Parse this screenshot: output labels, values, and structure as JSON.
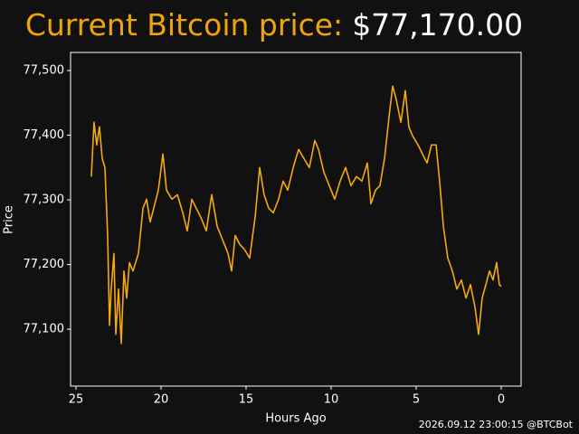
{
  "chart_data": {
    "type": "line",
    "title_label": "Current Bitcoin price:",
    "title_value": "$77,170.00",
    "x_label": "Hours Ago",
    "y_label": "Price",
    "footer": "2026.09.12 23:00:15 @BTCBot",
    "xlim": [
      25.32,
      -1.17
    ],
    "xticks": [
      25,
      20,
      15,
      10,
      5,
      0
    ],
    "ylim": [
      77012,
      77528
    ],
    "yticks": [
      {
        "value": 77100,
        "label": "77,100"
      },
      {
        "value": 77200,
        "label": "77,200"
      },
      {
        "value": 77300,
        "label": "77,300"
      },
      {
        "value": 77400,
        "label": "77,400"
      },
      {
        "value": 77500,
        "label": "77,500"
      }
    ],
    "x": [
      24.1,
      23.94,
      23.78,
      23.62,
      23.46,
      23.3,
      23.14,
      23.03,
      22.93,
      22.77,
      22.66,
      22.5,
      22.34,
      22.18,
      22.02,
      21.86,
      21.65,
      21.33,
      21.06,
      20.85,
      20.64,
      20.43,
      20.16,
      19.89,
      19.68,
      19.36,
      19.04,
      18.72,
      18.46,
      18.19,
      17.93,
      17.66,
      17.34,
      17.02,
      16.7,
      16.38,
      16.06,
      15.85,
      15.64,
      15.37,
      15.11,
      14.79,
      14.47,
      14.2,
      13.94,
      13.67,
      13.4,
      13.09,
      12.82,
      12.55,
      12.23,
      11.91,
      11.6,
      11.28,
      10.96,
      10.74,
      10.43,
      10.11,
      9.79,
      9.47,
      9.15,
      8.83,
      8.51,
      8.19,
      7.87,
      7.66,
      7.39,
      7.13,
      6.86,
      6.6,
      6.38,
      6.17,
      5.9,
      5.64,
      5.43,
      5.21,
      4.89,
      4.63,
      4.36,
      4.1,
      3.83,
      3.62,
      3.4,
      3.14,
      2.87,
      2.61,
      2.34,
      2.07,
      1.81,
      1.54,
      1.33,
      1.12,
      0.9,
      0.69,
      0.48,
      0.27,
      0.11,
      0
    ],
    "series": [
      {
        "color": "#f5a80f",
        "values": [
          77336,
          77420,
          77385,
          77413,
          77364,
          77350,
          77245,
          77106,
          77162,
          77217,
          77092,
          77162,
          77078,
          77190,
          77148,
          77203,
          77190,
          77217,
          77287,
          77301,
          77266,
          77287,
          77315,
          77371,
          77315,
          77301,
          77308,
          77280,
          77252,
          77301,
          77287,
          77273,
          77252,
          77308,
          77259,
          77238,
          77217,
          77190,
          77245,
          77231,
          77224,
          77210,
          77273,
          77350,
          77308,
          77287,
          77280,
          77301,
          77329,
          77315,
          77350,
          77378,
          77364,
          77350,
          77392,
          77378,
          77343,
          77322,
          77301,
          77329,
          77350,
          77322,
          77336,
          77329,
          77357,
          77294,
          77315,
          77322,
          77364,
          77427,
          77476,
          77455,
          77420,
          77469,
          77413,
          77399,
          77385,
          77371,
          77357,
          77385,
          77385,
          77329,
          77259,
          77210,
          77190,
          77162,
          77176,
          77148,
          77169,
          77134,
          77092,
          77148,
          77169,
          77190,
          77176,
          77203,
          77169,
          77166
        ]
      }
    ]
  }
}
